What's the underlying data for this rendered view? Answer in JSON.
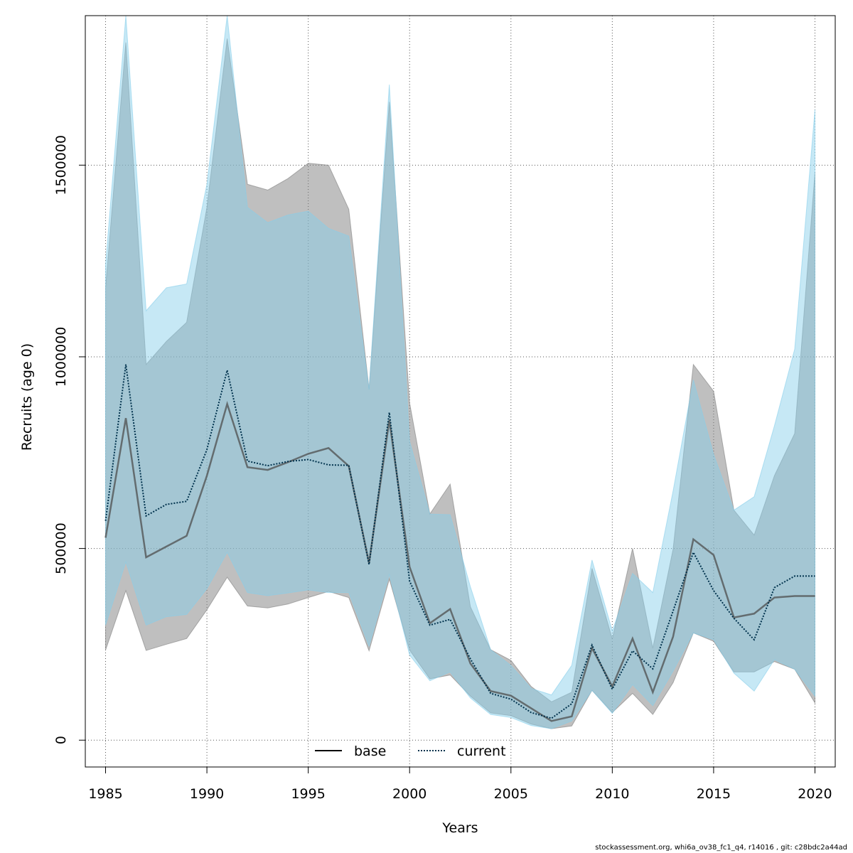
{
  "chart_data": {
    "type": "line",
    "xlabel": "Years",
    "ylabel": "Recruits (age 0)",
    "xlim": [
      1984,
      2021
    ],
    "ylim": [
      -70000,
      1890000
    ],
    "xticks": [
      1985,
      1990,
      1995,
      2000,
      2005,
      2010,
      2015,
      2020
    ],
    "yticks": [
      0,
      500000,
      1000000,
      1500000
    ],
    "ytick_labels": [
      "0",
      "500000",
      "1000000",
      "1500000"
    ],
    "grid": true,
    "legend_position": "bottom-center",
    "x": [
      1985,
      1986,
      1987,
      1988,
      1989,
      1990,
      1991,
      1992,
      1993,
      1994,
      1995,
      1996,
      1997,
      1998,
      1999,
      2000,
      2001,
      2002,
      2003,
      2004,
      2005,
      2006,
      2007,
      2008,
      2009,
      2010,
      2011,
      2012,
      2013,
      2014,
      2015,
      2016,
      2017,
      2018,
      2019,
      2020
    ],
    "series": [
      {
        "name": "base",
        "line_style": "solid",
        "line_color": "#4d4d4d",
        "band_color": "#7f7f7f",
        "values": [
          528000,
          840000,
          477000,
          505000,
          533000,
          690000,
          877000,
          712000,
          705000,
          725000,
          747000,
          762000,
          715000,
          462000,
          835000,
          452000,
          305000,
          342000,
          200000,
          128000,
          116000,
          83000,
          50000,
          62000,
          240000,
          140000,
          265000,
          125000,
          270000,
          524000,
          483000,
          320000,
          330000,
          372000,
          376000,
          376000
        ],
        "lower": [
          235000,
          390000,
          234000,
          250000,
          265000,
          340000,
          425000,
          350000,
          345000,
          355000,
          372000,
          388000,
          372000,
          233000,
          420000,
          235000,
          160000,
          170000,
          115000,
          71000,
          64000,
          42000,
          30000,
          37000,
          130000,
          72000,
          122000,
          67000,
          150000,
          280000,
          258000,
          178000,
          178000,
          205000,
          185000,
          97000
        ],
        "upper": [
          1180000,
          1820000,
          980000,
          1040000,
          1090000,
          1390000,
          1830000,
          1450000,
          1435000,
          1465000,
          1505000,
          1500000,
          1385000,
          915000,
          1665000,
          880000,
          590000,
          668000,
          348000,
          236000,
          208000,
          140000,
          100000,
          125000,
          448000,
          264000,
          500000,
          240000,
          498000,
          980000,
          910000,
          600000,
          535000,
          690000,
          800000,
          1480000
        ]
      },
      {
        "name": "current",
        "line_style": "dotted",
        "line_color": "#00324d",
        "band_color": "#87ceeb",
        "values": [
          572000,
          980000,
          585000,
          615000,
          623000,
          758000,
          965000,
          728000,
          716000,
          727000,
          732000,
          718000,
          717000,
          458000,
          855000,
          415000,
          300000,
          315000,
          212000,
          122000,
          107000,
          72000,
          57000,
          95000,
          248000,
          133000,
          233000,
          186000,
          337000,
          490000,
          390000,
          318000,
          262000,
          398000,
          428000,
          428000
        ],
        "lower": [
          300000,
          465000,
          300000,
          322000,
          328000,
          395000,
          490000,
          385000,
          377000,
          384000,
          392000,
          385000,
          385000,
          245000,
          432000,
          222000,
          155000,
          178000,
          110000,
          67000,
          59000,
          38000,
          30000,
          50000,
          130000,
          70000,
          145000,
          90000,
          180000,
          280000,
          262000,
          175000,
          128000,
          210000,
          185000,
          115000
        ],
        "upper": [
          1240000,
          1890000,
          1120000,
          1180000,
          1190000,
          1450000,
          1890000,
          1390000,
          1350000,
          1370000,
          1380000,
          1335000,
          1315000,
          915000,
          1710000,
          780000,
          590000,
          588000,
          400000,
          236000,
          195000,
          135000,
          118000,
          195000,
          470000,
          285000,
          435000,
          385000,
          650000,
          940000,
          745000,
          600000,
          635000,
          820000,
          1020000,
          1645000
        ]
      }
    ]
  },
  "footer_text": "stockassessment.org, whi6a_ov38_fc1_q4, r14016 , git: c28bdc2a44ad"
}
